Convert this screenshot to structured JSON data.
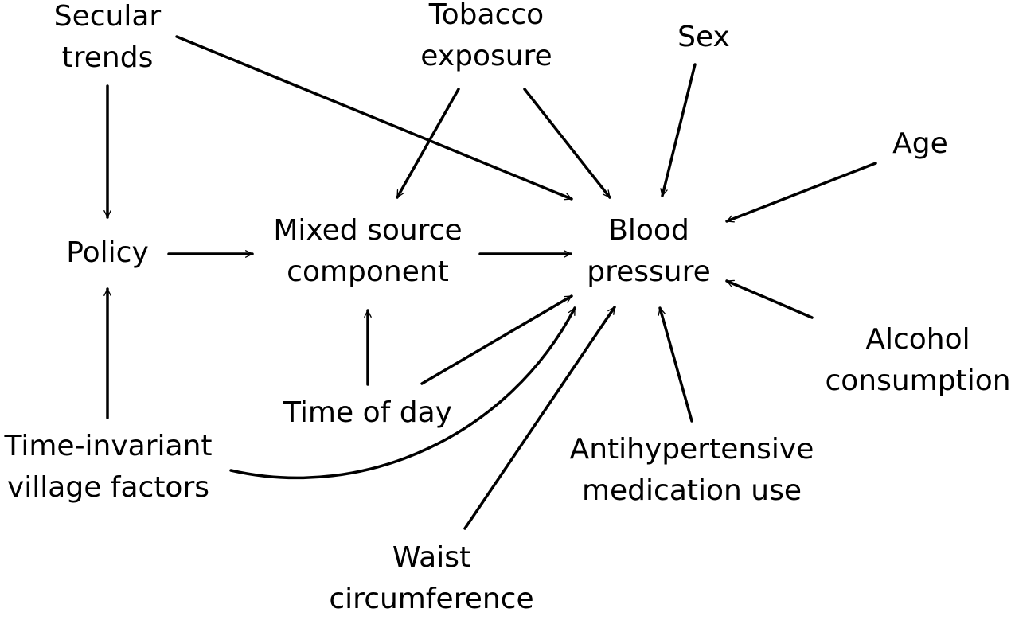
{
  "diagram": {
    "nodes": {
      "secular_trends": {
        "line1": "Secular",
        "line2": "trends"
      },
      "tobacco_exposure": {
        "line1": "Tobacco",
        "line2": "exposure"
      },
      "sex": {
        "line1": "Sex"
      },
      "age": {
        "line1": "Age"
      },
      "policy": {
        "line1": "Policy"
      },
      "mixed_source_component": {
        "line1": "Mixed source",
        "line2": "component"
      },
      "blood_pressure": {
        "line1": "Blood",
        "line2": "pressure"
      },
      "alcohol_consumption": {
        "line1": "Alcohol",
        "line2": "consumption"
      },
      "time_of_day": {
        "line1": "Time of day"
      },
      "time_invariant_village_factors": {
        "line1": "Time-invariant",
        "line2": "village factors"
      },
      "antihypertensive_medication_use": {
        "line1": "Antihypertensive",
        "line2": "medication use"
      },
      "waist_circumference": {
        "line1": "Waist",
        "line2": "circumference"
      }
    },
    "edges": [
      {
        "from": "secular_trends",
        "to": "policy"
      },
      {
        "from": "secular_trends",
        "to": "blood_pressure"
      },
      {
        "from": "tobacco_exposure",
        "to": "mixed_source_component"
      },
      {
        "from": "tobacco_exposure",
        "to": "blood_pressure"
      },
      {
        "from": "sex",
        "to": "blood_pressure"
      },
      {
        "from": "age",
        "to": "blood_pressure"
      },
      {
        "from": "policy",
        "to": "mixed_source_component"
      },
      {
        "from": "mixed_source_component",
        "to": "blood_pressure"
      },
      {
        "from": "alcohol_consumption",
        "to": "blood_pressure"
      },
      {
        "from": "time_of_day",
        "to": "mixed_source_component"
      },
      {
        "from": "time_of_day",
        "to": "blood_pressure"
      },
      {
        "from": "time_invariant_village_factors",
        "to": "policy"
      },
      {
        "from": "time_invariant_village_factors",
        "to": "blood_pressure"
      },
      {
        "from": "antihypertensive_medication_use",
        "to": "blood_pressure"
      },
      {
        "from": "waist_circumference",
        "to": "blood_pressure"
      }
    ]
  }
}
